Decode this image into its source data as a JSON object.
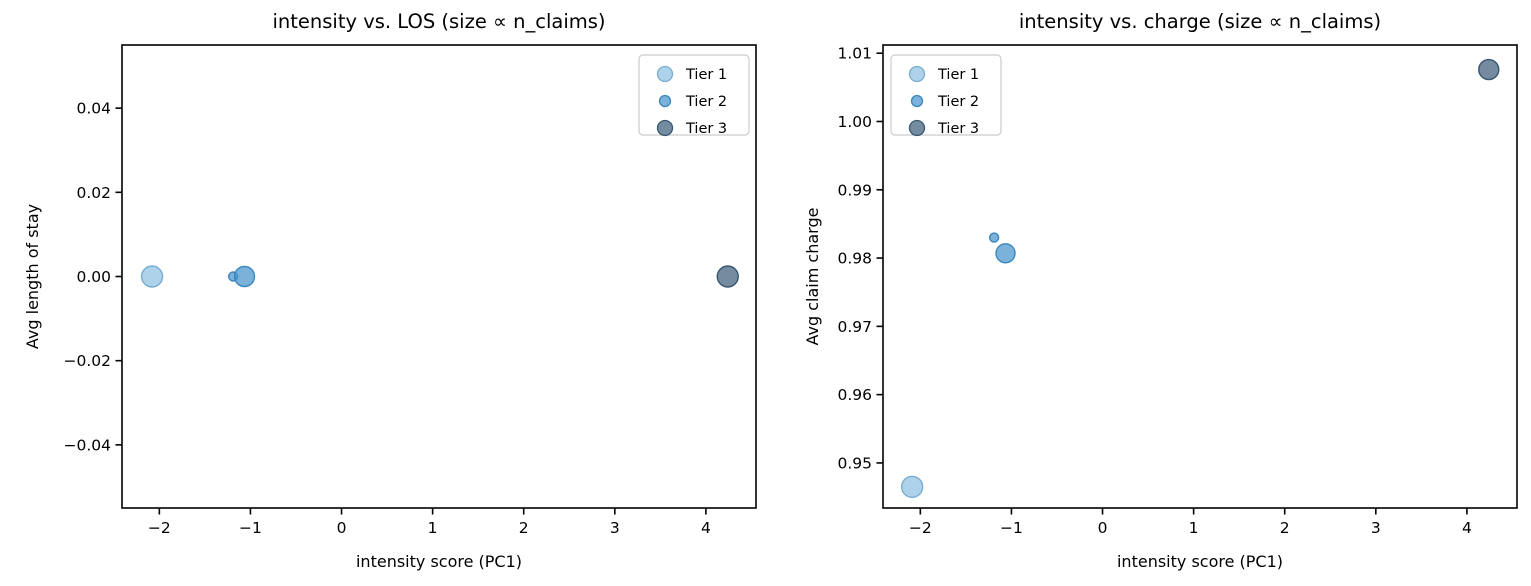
{
  "figure": {
    "background": "#ffffff",
    "spine_color": "#000000",
    "legend_border_color": "#cccccc"
  },
  "chart_data": [
    {
      "type": "scatter",
      "title": "intensity vs. LOS (size ∝ n_claims)",
      "xlabel": "intensity score (PC1)",
      "ylabel": "Avg length of stay",
      "xlim": [
        -2.41,
        4.55
      ],
      "ylim": [
        -0.055,
        0.055
      ],
      "grid": false,
      "legend": {
        "position": "top-right"
      },
      "xticks": [
        {
          "v": -2,
          "label": "−2"
        },
        {
          "v": -1,
          "label": "−1"
        },
        {
          "v": 0,
          "label": "0"
        },
        {
          "v": 1,
          "label": "1"
        },
        {
          "v": 2,
          "label": "2"
        },
        {
          "v": 3,
          "label": "3"
        },
        {
          "v": 4,
          "label": "4"
        }
      ],
      "yticks": [
        {
          "v": 0.04,
          "label": "0.04"
        },
        {
          "v": 0.02,
          "label": "0.02"
        },
        {
          "v": 0.0,
          "label": "0.00"
        },
        {
          "v": -0.02,
          "label": "−0.02"
        },
        {
          "v": -0.04,
          "label": "−0.04"
        }
      ],
      "series": [
        {
          "name": "Tier 1",
          "fill": "#8fc0e1",
          "edge": "#74a9cf",
          "legend_r": 7.5,
          "points": [
            {
              "x": -2.08,
              "y": 0.0,
              "r": 10.5
            }
          ]
        },
        {
          "name": "Tier 2",
          "fill": "#4a94ca",
          "edge": "#3583bb",
          "legend_r": 5.5,
          "points": [
            {
              "x": -1.19,
              "y": 0.0,
              "r": 4.5
            },
            {
              "x": -1.065,
              "y": 0.0,
              "r": 10
            }
          ]
        },
        {
          "name": "Tier 3",
          "fill": "#40607c",
          "edge": "#31506c",
          "legend_r": 7.5,
          "points": [
            {
              "x": 4.24,
              "y": 0.0,
              "r": 10.5
            }
          ]
        }
      ]
    },
    {
      "type": "scatter",
      "title": "intensity vs. charge (size ∝ n_claims)",
      "xlabel": "intensity score (PC1)",
      "ylabel": "Avg claim charge",
      "xlim": [
        -2.41,
        4.55
      ],
      "ylim": [
        0.9434,
        1.0112
      ],
      "grid": false,
      "legend": {
        "position": "top-left"
      },
      "xticks": [
        {
          "v": -2,
          "label": "−2"
        },
        {
          "v": -1,
          "label": "−1"
        },
        {
          "v": 0,
          "label": "0"
        },
        {
          "v": 1,
          "label": "1"
        },
        {
          "v": 2,
          "label": "2"
        },
        {
          "v": 3,
          "label": "3"
        },
        {
          "v": 4,
          "label": "4"
        }
      ],
      "yticks": [
        {
          "v": 1.01,
          "label": "1.01"
        },
        {
          "v": 1.0,
          "label": "1.00"
        },
        {
          "v": 0.99,
          "label": "0.99"
        },
        {
          "v": 0.98,
          "label": "0.98"
        },
        {
          "v": 0.97,
          "label": "0.97"
        },
        {
          "v": 0.96,
          "label": "0.96"
        },
        {
          "v": 0.95,
          "label": "0.95"
        }
      ],
      "series": [
        {
          "name": "Tier 1",
          "fill": "#8fc0e1",
          "edge": "#74a9cf",
          "legend_r": 7.5,
          "points": [
            {
              "x": -2.09,
              "y": 0.9465,
              "r": 10.5
            }
          ]
        },
        {
          "name": "Tier 2",
          "fill": "#4a94ca",
          "edge": "#3583bb",
          "legend_r": 5.5,
          "points": [
            {
              "x": -1.19,
              "y": 0.983,
              "r": 4.5
            },
            {
              "x": -1.065,
              "y": 0.9807,
              "r": 9.5
            }
          ]
        },
        {
          "name": "Tier 3",
          "fill": "#40607c",
          "edge": "#31506c",
          "legend_r": 7.5,
          "points": [
            {
              "x": 4.24,
              "y": 1.0076,
              "r": 10
            }
          ]
        }
      ]
    }
  ]
}
